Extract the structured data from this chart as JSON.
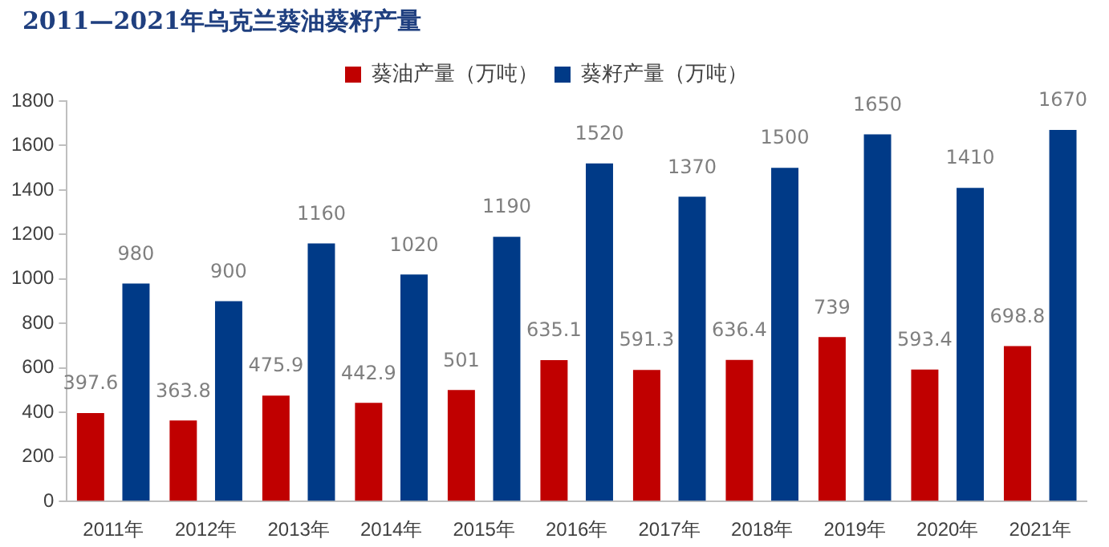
{
  "chart_data": {
    "type": "bar",
    "title": "2011—2021年乌克兰葵油葵籽产量",
    "categories": [
      "2011年",
      "2012年",
      "2013年",
      "2014年",
      "2015年",
      "2016年",
      "2017年",
      "2018年",
      "2019年",
      "2020年",
      "2021年"
    ],
    "series": [
      {
        "name": "葵油产量（万吨）",
        "color": "#c00000",
        "values": [
          397.6,
          363.8,
          475.9,
          442.9,
          501,
          635.1,
          591.3,
          636.4,
          739,
          593.4,
          698.8
        ]
      },
      {
        "name": "葵籽产量（万吨）",
        "color": "#003a87",
        "values": [
          980,
          900,
          1160,
          1020,
          1190,
          1520,
          1370,
          1500,
          1650,
          1410,
          1670
        ]
      }
    ],
    "ylim": [
      0,
      1800
    ],
    "yticks": [
      0,
      200,
      400,
      600,
      800,
      1000,
      1200,
      1400,
      1600,
      1800
    ],
    "grid": false,
    "legend": "top",
    "data_labels": true
  }
}
